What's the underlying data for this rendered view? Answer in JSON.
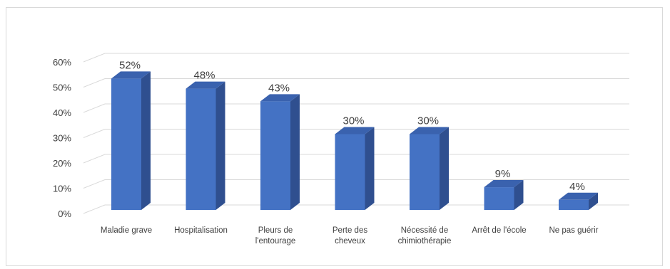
{
  "chart_data": {
    "type": "bar",
    "style": "3d-column",
    "categories": [
      [
        "Maladie grave"
      ],
      [
        "Hospitalisation"
      ],
      [
        "Pleurs de",
        "l'entourage"
      ],
      [
        "Perte des",
        "cheveux"
      ],
      [
        "Nécessité de",
        "chimiothérapie"
      ],
      [
        "Arrêt de l'école"
      ],
      [
        "Ne pas guérir"
      ]
    ],
    "values": [
      52,
      48,
      43,
      30,
      30,
      9,
      4
    ],
    "data_labels": [
      "52%",
      "48%",
      "43%",
      "30%",
      "30%",
      "9%",
      "4%"
    ],
    "yticks": [
      0,
      10,
      20,
      30,
      40,
      50,
      60
    ],
    "ytick_labels": [
      "0%",
      "10%",
      "20%",
      "30%",
      "40%",
      "50%",
      "60%"
    ],
    "ylim": [
      0,
      60
    ],
    "grid": true,
    "legend": "none",
    "title": "",
    "xlabel": "",
    "ylabel": "",
    "colors": {
      "front": "#4472C4",
      "side": "#2F4F8F",
      "top": "#3A62AE",
      "grid": "#d9d9d9",
      "text": "#404040"
    }
  }
}
